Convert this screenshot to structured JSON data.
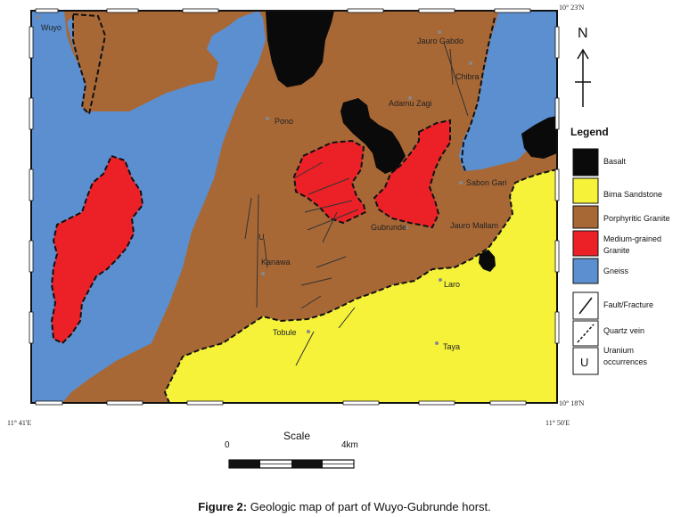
{
  "map": {
    "coordinates": {
      "top_right": "10° 23'N",
      "bottom_right": "10° 18'N",
      "bottom_left": "11° 41'E",
      "bottom_right_lon": "11° 50'E"
    },
    "north_label": "N",
    "places": [
      {
        "name": "Wuyo"
      },
      {
        "name": "Jauro Gabdo"
      },
      {
        "name": "Chibra"
      },
      {
        "name": "Adamu Zagi"
      },
      {
        "name": "Pono"
      },
      {
        "name": "Sabon Gari"
      },
      {
        "name": "Gubrunde"
      },
      {
        "name": "Jauro Mallam"
      },
      {
        "name": "Kanawa"
      },
      {
        "name": "Laro"
      },
      {
        "name": "Tobule"
      },
      {
        "name": "Taya"
      }
    ],
    "uranium_marker": "U",
    "colors": {
      "gneiss": "#5b8fd0",
      "porphyritic_granite": "#a86836",
      "medium_granite": "#ec2127",
      "bima_sandstone": "#f6f23a",
      "basalt": "#0a0a0a"
    }
  },
  "legend": {
    "title": "Legend",
    "items": [
      {
        "label": "Basalt"
      },
      {
        "label": "Bima Sandstone"
      },
      {
        "label": "Porphyritic Granite"
      },
      {
        "label_line1": "Medium-grained",
        "label_line2": "Granite"
      },
      {
        "label": "Gneiss"
      },
      {
        "label": "Fault/Fracture"
      },
      {
        "label": "Quartz vein"
      },
      {
        "label_line1": "Uranium",
        "label_line2": "occurrences"
      }
    ],
    "uranium_symbol": "U"
  },
  "scale": {
    "title": "Scale",
    "start": "0",
    "end": "4km"
  },
  "caption": {
    "label": "Figure 2:",
    "text": "Geologic map of part of Wuyo-Gubrunde horst."
  }
}
